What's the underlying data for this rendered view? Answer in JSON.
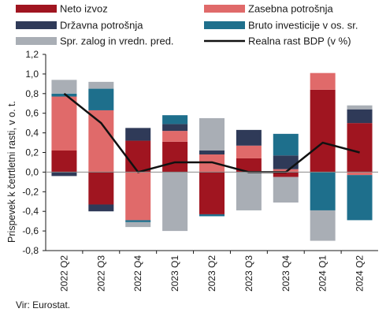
{
  "chart_data": {
    "type": "bar",
    "stacked": true,
    "categories": [
      "2022 Q2",
      "2022 Q3",
      "2022 Q4",
      "2023 Q1",
      "2023 Q2",
      "2023 Q3",
      "2023 Q4",
      "2024 Q1",
      "2024 Q2"
    ],
    "ylabel": "Prispevek k četrtletni rasti, v o. t.",
    "ylim": [
      -0.8,
      1.2
    ],
    "yticks": [
      "1,2",
      "1,0",
      "0,8",
      "0,6",
      "0,4",
      "0,2",
      "0,0",
      "-0,2",
      "-0,4",
      "-0,6",
      "-0,8"
    ],
    "legend_position": "top",
    "series": [
      {
        "name": "Neto izvoz",
        "color": "#a01520",
        "values": [
          0.22,
          -0.33,
          0.32,
          0.31,
          -0.43,
          0.14,
          -0.05,
          0.84,
          0.5
        ]
      },
      {
        "name": "Zasebna potrošnja",
        "color": "#e06a6a",
        "values": [
          0.55,
          0.63,
          -0.49,
          0.11,
          0.18,
          0.13,
          0.03,
          0.17,
          -0.03
        ]
      },
      {
        "name": "Državna potrošnja",
        "color": "#2f3a58",
        "values": [
          -0.04,
          -0.07,
          0.13,
          0.07,
          0.04,
          0.16,
          0.14,
          0.0,
          0.14
        ]
      },
      {
        "name": "Bruto investicije v os. sr.",
        "color": "#1e6f8c",
        "values": [
          0.03,
          0.22,
          -0.02,
          0.09,
          -0.02,
          0.0,
          0.22,
          -0.39,
          -0.46
        ]
      },
      {
        "name": "Spr. zalog in vredn. pred.",
        "color": "#a9aeb5",
        "values": [
          0.14,
          0.07,
          -0.05,
          -0.6,
          0.33,
          -0.39,
          -0.26,
          -0.31,
          0.04
        ]
      }
    ],
    "line": {
      "name": "Realna rast BDP (v %)",
      "color": "#111111",
      "values": [
        0.8,
        0.5,
        0.0,
        0.1,
        0.1,
        0.0,
        0.0,
        0.3,
        0.2
      ]
    }
  },
  "source": "Vir: Eurostat."
}
